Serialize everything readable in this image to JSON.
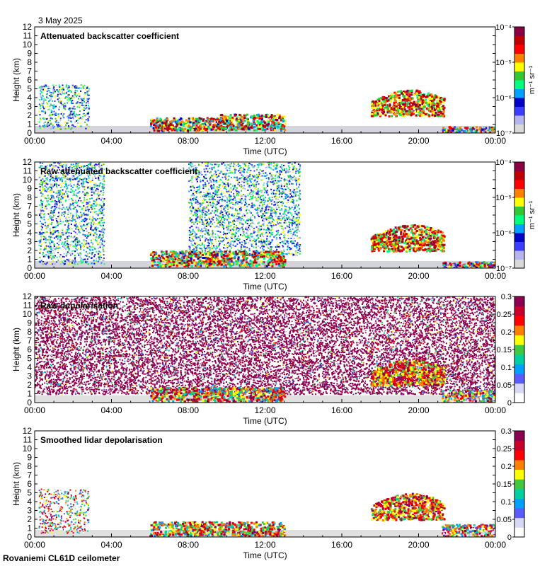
{
  "date_label": "3 May 2025",
  "footer_label": "Rovaniemi CL61D ceilometer",
  "colors": {
    "frame": "#000000",
    "background": "#ffffff",
    "cmap_backscatter": [
      "#d9d9d9",
      "#b4b4f0",
      "#3c3cff",
      "#0000c8",
      "#00a0ff",
      "#00ff80",
      "#32c832",
      "#ffff00",
      "#ff8000",
      "#ff0000",
      "#c00000",
      "#8b0040"
    ],
    "cmap_depol": [
      "#ffffff",
      "#d8d8f4",
      "#5a5aff",
      "#00a0ff",
      "#00d0a0",
      "#40c840",
      "#ffff00",
      "#ff8000",
      "#ff0000",
      "#c8002a",
      "#8b0050"
    ]
  },
  "chart_data": [
    {
      "type": "heatmap",
      "title": "Attenuated backscatter coefficient",
      "xlabel": "Time (UTC)",
      "ylabel": "Height (km)",
      "x_ticks": [
        "00:00",
        "04:00",
        "08:00",
        "12:00",
        "16:00",
        "20:00",
        "00:00"
      ],
      "y_ticks": [
        0,
        1,
        2,
        3,
        4,
        5,
        6,
        7,
        8,
        9,
        10,
        11,
        12
      ],
      "xlim_hours": [
        0,
        24
      ],
      "ylim_km": [
        0,
        12
      ],
      "colorbar": {
        "scale": "log",
        "range": [
          1e-07,
          0.0001
        ],
        "ticks": [
          "10⁻⁷",
          "10⁻⁶",
          "10⁻⁵",
          "10⁻⁴"
        ],
        "units": "m⁻¹ sr⁻¹"
      },
      "grid": false,
      "features": [
        {
          "t_start": 0.2,
          "t_end": 2.8,
          "z_bottom": 0.5,
          "z_top": 5.5,
          "kind": "noise-column"
        },
        {
          "t_start": 6.0,
          "t_end": 10.0,
          "z_bottom": 0.3,
          "z_top": 1.8,
          "kind": "low-cloud"
        },
        {
          "t_start": 9.5,
          "t_end": 13.0,
          "z_bottom": 0.4,
          "z_top": 2.2,
          "kind": "low-cloud"
        },
        {
          "t_start": 17.5,
          "t_end": 21.3,
          "z_bottom": 2.0,
          "z_top": 5.0,
          "kind": "mid-cloud"
        },
        {
          "t_start": 21.2,
          "t_end": 24.0,
          "z_bottom": 0.0,
          "z_top": 0.8,
          "kind": "boundary-layer"
        }
      ]
    },
    {
      "type": "heatmap",
      "title": "Raw attenuated backscatter coefficient",
      "xlabel": "Time (UTC)",
      "ylabel": "Height (km)",
      "x_ticks": [
        "00:00",
        "04:00",
        "08:00",
        "12:00",
        "16:00",
        "20:00",
        "00:00"
      ],
      "y_ticks": [
        0,
        1,
        2,
        3,
        4,
        5,
        6,
        7,
        8,
        9,
        10,
        11,
        12
      ],
      "xlim_hours": [
        0,
        24
      ],
      "ylim_km": [
        0,
        12
      ],
      "colorbar": {
        "scale": "log",
        "range": [
          1e-07,
          0.0001
        ],
        "ticks": [
          "10⁻⁷",
          "10⁻⁶",
          "10⁻⁵",
          "10⁻⁴"
        ],
        "units": "m⁻¹ sr⁻¹"
      },
      "grid": false,
      "features": [
        {
          "t_start": 0.2,
          "t_end": 3.6,
          "z_bottom": 0.5,
          "z_top": 12,
          "kind": "noise-column"
        },
        {
          "t_start": 8.0,
          "t_end": 13.8,
          "z_bottom": 1.5,
          "z_top": 12,
          "kind": "noise-column"
        },
        {
          "t_start": 6.0,
          "t_end": 13.0,
          "z_bottom": 0.3,
          "z_top": 2.0,
          "kind": "low-cloud"
        },
        {
          "t_start": 17.5,
          "t_end": 21.3,
          "z_bottom": 2.0,
          "z_top": 5.0,
          "kind": "mid-cloud"
        },
        {
          "t_start": 21.2,
          "t_end": 24.0,
          "z_bottom": 0.0,
          "z_top": 0.8,
          "kind": "boundary-layer"
        }
      ]
    },
    {
      "type": "heatmap",
      "title": "Raw depolarisation",
      "xlabel": "Time (UTC)",
      "ylabel": "Height (km)",
      "x_ticks": [
        "00:00",
        "04:00",
        "08:00",
        "12:00",
        "16:00",
        "20:00",
        "00:00"
      ],
      "y_ticks": [
        0,
        1,
        2,
        3,
        4,
        5,
        6,
        7,
        8,
        9,
        10,
        11,
        12
      ],
      "xlim_hours": [
        0,
        24
      ],
      "ylim_km": [
        0,
        12
      ],
      "colorbar": {
        "scale": "linear",
        "range": [
          0,
          0.3
        ],
        "ticks": [
          "0",
          "0.05",
          "0.1",
          "0.15",
          "0.2",
          "0.25",
          "0.3"
        ],
        "units": ""
      },
      "grid": false,
      "features": [
        {
          "t_start": 0.0,
          "t_end": 24.0,
          "z_bottom": 1.0,
          "z_top": 12,
          "kind": "depol-noise"
        },
        {
          "t_start": 6.0,
          "t_end": 13.0,
          "z_bottom": 0.2,
          "z_top": 1.8,
          "kind": "low-cloud"
        },
        {
          "t_start": 17.5,
          "t_end": 21.3,
          "z_bottom": 2.0,
          "z_top": 5.0,
          "kind": "mid-cloud"
        },
        {
          "t_start": 21.2,
          "t_end": 24.0,
          "z_bottom": 0.0,
          "z_top": 1.5,
          "kind": "boundary-layer"
        }
      ]
    },
    {
      "type": "heatmap",
      "title": "Smoothed lidar depolarisation",
      "xlabel": "Time (UTC)",
      "ylabel": "Height (km)",
      "x_ticks": [
        "00:00",
        "04:00",
        "08:00",
        "12:00",
        "16:00",
        "20:00",
        "00:00"
      ],
      "y_ticks": [
        0,
        1,
        2,
        3,
        4,
        5,
        6,
        7,
        8,
        9,
        10,
        11,
        12
      ],
      "xlim_hours": [
        0,
        24
      ],
      "ylim_km": [
        0,
        12
      ],
      "colorbar": {
        "scale": "linear",
        "range": [
          0,
          0.3
        ],
        "ticks": [
          "0",
          "0.05",
          "0.1",
          "0.15",
          "0.2",
          "0.25",
          "0.3"
        ],
        "units": ""
      },
      "grid": false,
      "features": [
        {
          "t_start": 0.2,
          "t_end": 2.8,
          "z_bottom": 0.5,
          "z_top": 5.5,
          "kind": "noise-column"
        },
        {
          "t_start": 6.0,
          "t_end": 13.0,
          "z_bottom": 0.2,
          "z_top": 1.8,
          "kind": "low-cloud"
        },
        {
          "t_start": 17.5,
          "t_end": 21.3,
          "z_bottom": 2.0,
          "z_top": 5.0,
          "kind": "mid-cloud"
        },
        {
          "t_start": 21.2,
          "t_end": 24.0,
          "z_bottom": 0.0,
          "z_top": 1.5,
          "kind": "boundary-layer"
        }
      ]
    }
  ]
}
